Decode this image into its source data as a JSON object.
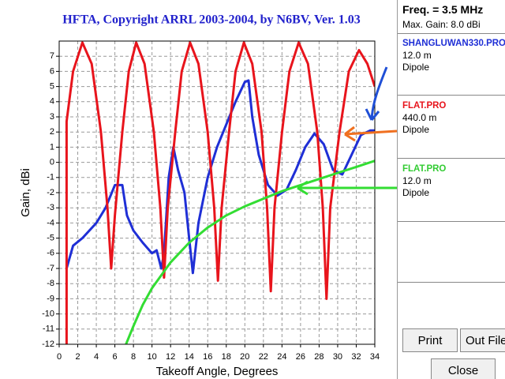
{
  "chart_data": {
    "type": "line",
    "title": "HFTA, Copyright ARRL 2003-2004, by N6BV, Ver. 1.03",
    "x_label": "Takeoff Angle, Degrees",
    "y_label": "Gain, dBi",
    "xlim": [
      0,
      34
    ],
    "xticks": [
      0,
      2,
      4,
      6,
      8,
      10,
      12,
      14,
      16,
      18,
      20,
      22,
      24,
      26,
      28,
      30,
      32,
      34
    ],
    "ylim": [
      -12,
      8
    ],
    "yticks": [
      -12,
      -11,
      -10,
      -9,
      -8,
      -7,
      -6,
      -5,
      -4,
      -3,
      -2,
      -1,
      0,
      1,
      2,
      3,
      4,
      5,
      6,
      7
    ],
    "grid": true,
    "series": [
      {
        "name": "SHANGLUWAN330.PRO",
        "height": "12.0 m",
        "antenna": "Dipole",
        "color": "#1f2fd6",
        "x": [
          0.8,
          1.5,
          2.5,
          4,
          5,
          6,
          6.8,
          7.3,
          8,
          9,
          10,
          10.5,
          11,
          11.3,
          11.8,
          12.3,
          12.8,
          13.5,
          14,
          14.4,
          15,
          16,
          17,
          18,
          19,
          20,
          20.4,
          20.8,
          21.5,
          22.5,
          23.5,
          24.5,
          25.5,
          26.5,
          27.5,
          28.5,
          29.5,
          30.5,
          31.5,
          32.5,
          33.5,
          34
        ],
        "values": [
          -7,
          -5.5,
          -5,
          -4,
          -3,
          -1.5,
          -1.5,
          -3.5,
          -4.5,
          -5.3,
          -6,
          -5.8,
          -7,
          -6,
          -1,
          1,
          -0.5,
          -2,
          -5,
          -7.3,
          -4,
          -1,
          1,
          2.5,
          4,
          5.3,
          5.4,
          3,
          0.5,
          -1.5,
          -2.2,
          -1.8,
          -0.5,
          1,
          1.9,
          1.2,
          -0.5,
          -0.8,
          0.5,
          1.8,
          2.1,
          2.1
        ]
      },
      {
        "name": "FLAT.PRO",
        "height": "440.0 m",
        "antenna": "Dipole",
        "color": "#e8141c",
        "x": [
          0.8,
          0.8,
          1.5,
          2.5,
          3.5,
          4.5,
          5.2,
          5.6,
          6.0,
          6.8,
          7.5,
          8.3,
          9.2,
          10.2,
          10.9,
          11.3,
          11.7,
          12.5,
          13.2,
          14.1,
          15,
          16,
          16.7,
          17.1,
          17.5,
          18.3,
          19,
          19.9,
          20.8,
          21.8,
          22.4,
          22.8,
          23.2,
          24,
          24.8,
          25.8,
          26.8,
          27.8,
          28.4,
          28.8,
          29.2,
          30.2,
          31.2,
          32.3,
          33.2,
          34
        ],
        "values": [
          -12,
          2.7,
          6,
          7.9,
          6.5,
          2,
          -3,
          -7,
          -3.5,
          2,
          6,
          7.9,
          6.5,
          2,
          -3,
          -7.6,
          -3,
          2,
          6,
          7.9,
          6.5,
          2,
          -3,
          -7.8,
          -3,
          2,
          6,
          7.9,
          6.5,
          2,
          -3,
          -8.5,
          -3,
          2,
          6,
          7.9,
          6.5,
          2,
          -3,
          -9,
          -3,
          2,
          6,
          7.4,
          6.5,
          5
        ]
      },
      {
        "name": "FLAT.PRO",
        "height": "12.0 m",
        "antenna": "Dipole",
        "color": "#33dd33",
        "x": [
          7.2,
          8,
          9,
          10,
          12,
          14,
          16,
          18,
          20,
          22,
          24,
          26,
          28,
          30,
          32,
          34
        ],
        "values": [
          -12,
          -10.8,
          -9.4,
          -8.3,
          -6.6,
          -5.3,
          -4.3,
          -3.5,
          -2.9,
          -2.4,
          -1.9,
          -1.5,
          -1.1,
          -0.7,
          -0.3,
          0.1
        ]
      }
    ]
  },
  "panel": {
    "freq": "Freq. = 3.5 MHz",
    "max_gain": "Max. Gain: 8.0 dBi",
    "buttons": [
      "Print",
      "Out File",
      "Close"
    ]
  }
}
